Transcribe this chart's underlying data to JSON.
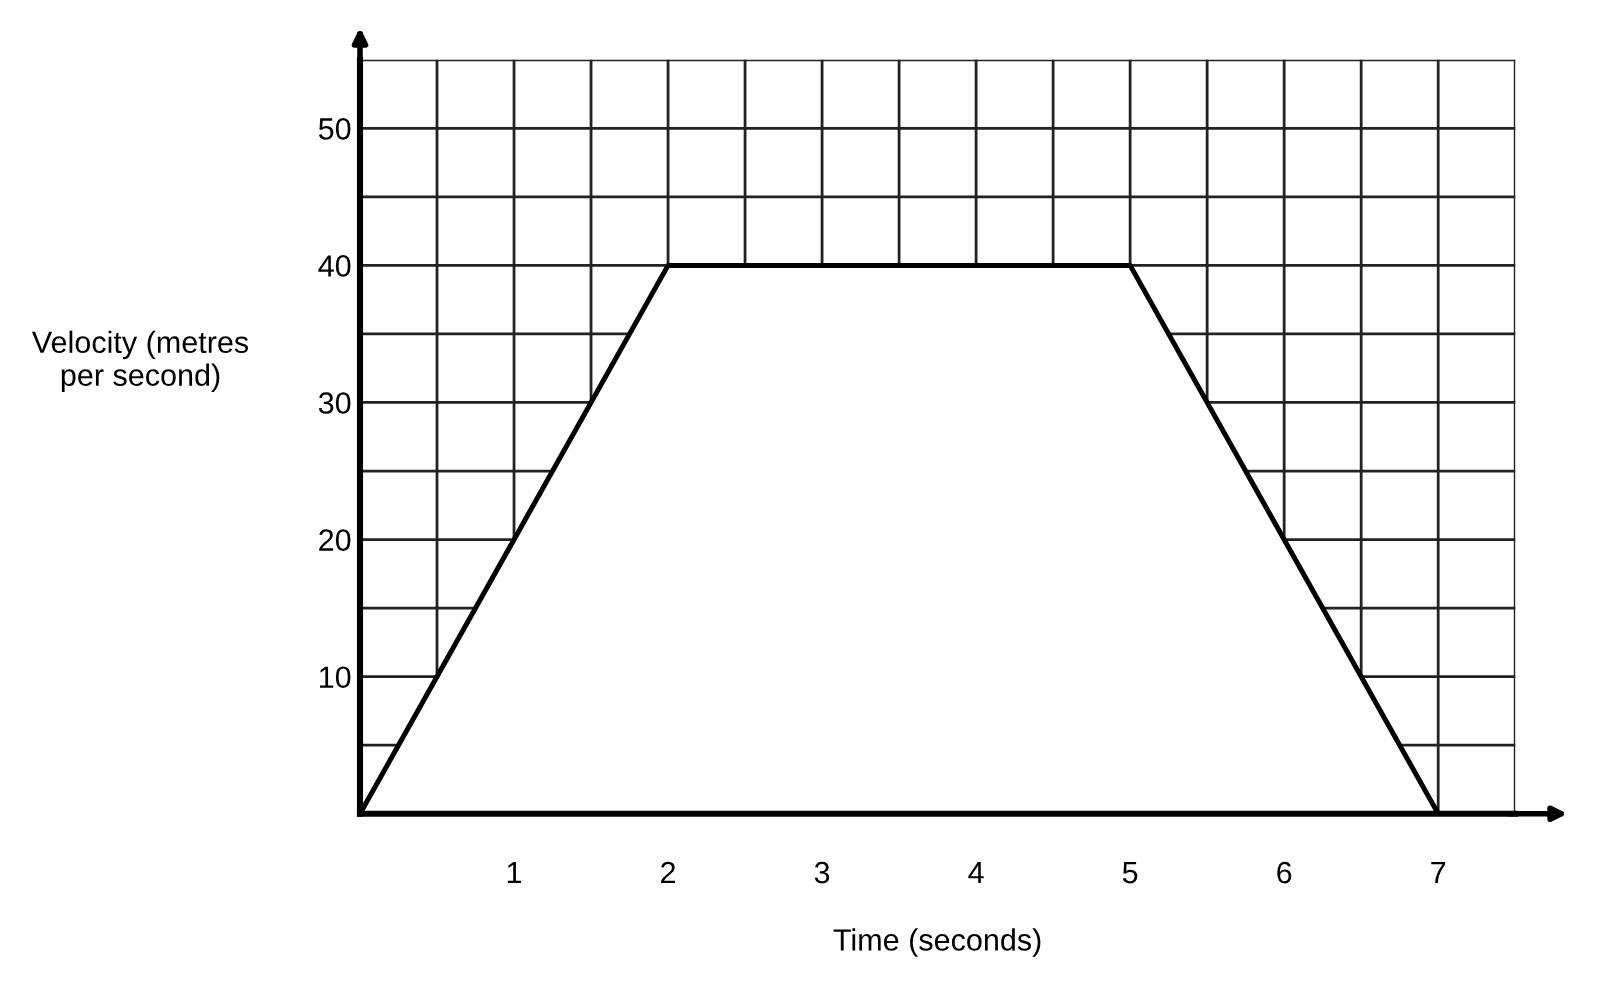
{
  "chart_data": {
    "type": "area",
    "xlabel": "Time (seconds)",
    "ylabel": "Velocity (metres\nper second)",
    "x": [
      0,
      2,
      5,
      7
    ],
    "series": [
      {
        "color": "#ffffff",
        "values": [
          0,
          40,
          40,
          0
        ]
      }
    ],
    "xlim": [
      0,
      7.5
    ],
    "ylim": [
      0,
      55
    ],
    "xticks": [
      {
        "value": 0,
        "label": null
      },
      {
        "value": 0.5,
        "label": null
      },
      1,
      {
        "value": 1.5,
        "label": null
      },
      2,
      {
        "value": 2.5,
        "label": null
      },
      3,
      {
        "value": 3.5,
        "label": null
      },
      4,
      {
        "value": 4.5,
        "label": null
      },
      5,
      {
        "value": 5.5,
        "label": null
      },
      6,
      {
        "value": 6.5,
        "label": null
      },
      7,
      {
        "value": 7.5,
        "label": null
      }
    ],
    "yticks": [
      {
        "value": 0,
        "label": null
      },
      {
        "value": 5,
        "label": null
      },
      10,
      {
        "value": 15,
        "label": null
      },
      20,
      {
        "value": 25,
        "label": null
      },
      30,
      {
        "value": 35,
        "label": null
      },
      40,
      {
        "value": 45,
        "label": null
      },
      50,
      {
        "value": 55,
        "label": null
      }
    ],
    "grid": true,
    "marker": "none",
    "line_style": "solid"
  }
}
